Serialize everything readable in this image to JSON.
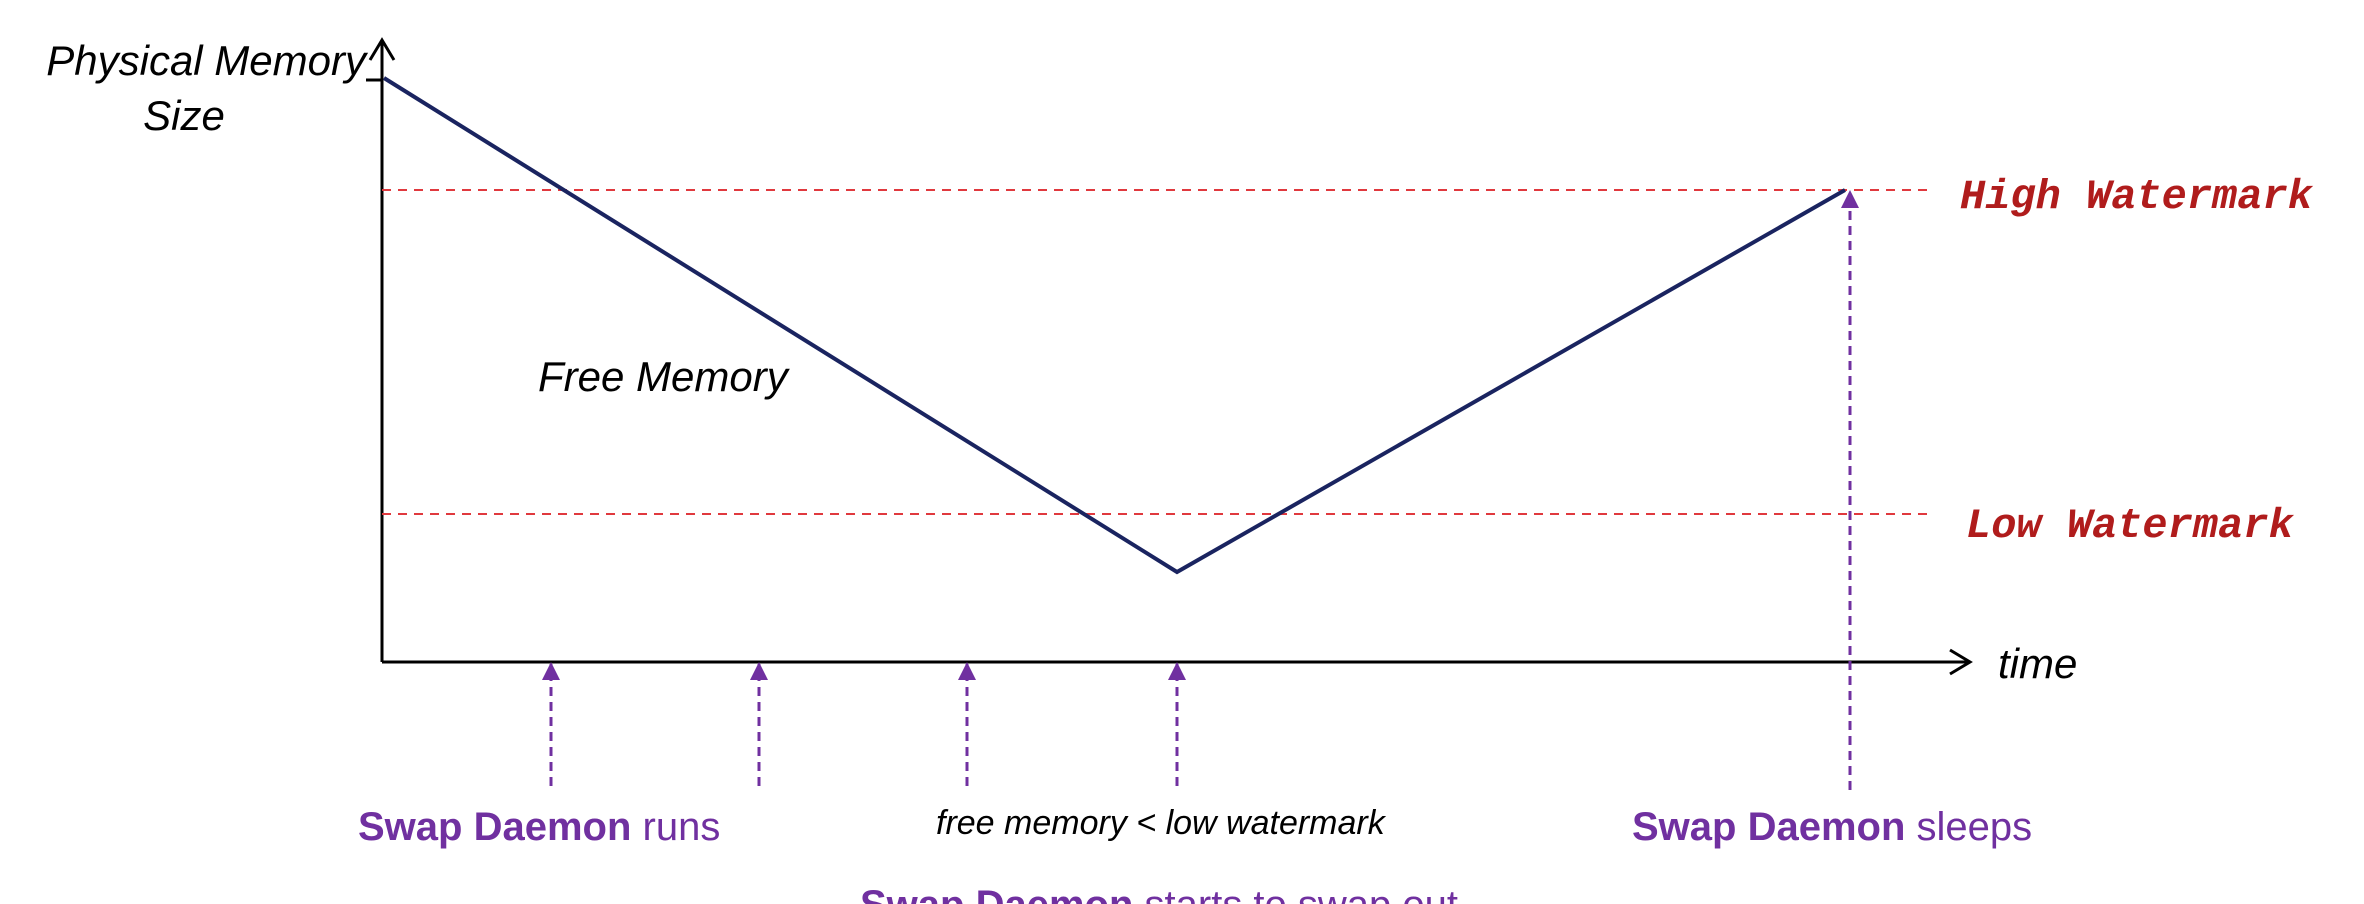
{
  "diagram": {
    "y_axis_label_line1": "Physical Memory",
    "y_axis_label_line2": "Size",
    "x_axis_label": "time",
    "curve_label": "Free Memory",
    "high_watermark_label": "High Watermark",
    "low_watermark_label": "Low Watermark",
    "annotation_runs_bold": "Swap Daemon",
    "annotation_runs_rest": " runs",
    "annotation_condition": "free memory < low watermark",
    "annotation_sleeps_bold": "Swap Daemon",
    "annotation_sleeps_rest": " sleeps",
    "annotation_starts_bold": "Swap Daemon",
    "annotation_starts_rest": " starts to swap out"
  },
  "colors": {
    "axis": "#000000",
    "curve": "#1a2460",
    "watermark": "#e0393e",
    "watermark_text": "#b01c1c",
    "daemon": "#7030a0"
  }
}
